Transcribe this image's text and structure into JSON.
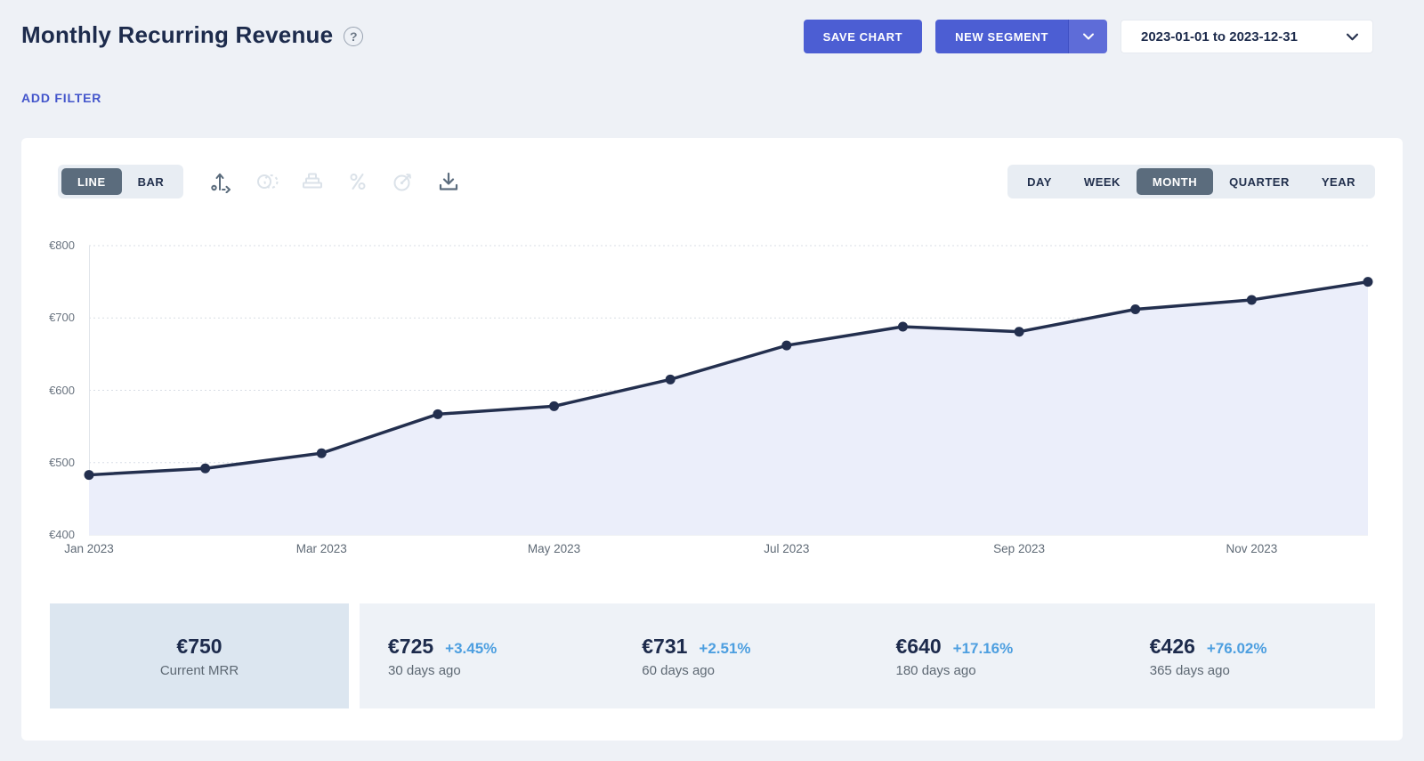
{
  "header": {
    "title": "Monthly Recurring Revenue",
    "help_icon": "question-mark-circle",
    "save_chart_label": "SAVE CHART",
    "new_segment_label": "NEW SEGMENT",
    "date_range": "2023-01-01 to 2023-12-31",
    "add_filter_label": "ADD FILTER"
  },
  "toolbar": {
    "chart_types": [
      {
        "label": "LINE",
        "selected": true
      },
      {
        "label": "BAR",
        "selected": false
      }
    ],
    "icons": [
      {
        "name": "axis-scale-icon",
        "enabled": true
      },
      {
        "name": "compare-circles-icon",
        "enabled": false
      },
      {
        "name": "stacked-chart-icon",
        "enabled": false
      },
      {
        "name": "percent-icon",
        "enabled": false
      },
      {
        "name": "goal-icon",
        "enabled": false
      },
      {
        "name": "download-icon",
        "enabled": true
      }
    ],
    "periods": [
      {
        "label": "DAY",
        "selected": false
      },
      {
        "label": "WEEK",
        "selected": false
      },
      {
        "label": "MONTH",
        "selected": true
      },
      {
        "label": "QUARTER",
        "selected": false
      },
      {
        "label": "YEAR",
        "selected": false
      }
    ]
  },
  "chart_data": {
    "type": "line",
    "title": "Monthly Recurring Revenue",
    "currency": "€",
    "x": [
      "Jan 2023",
      "Feb 2023",
      "Mar 2023",
      "Apr 2023",
      "May 2023",
      "Jun 2023",
      "Jul 2023",
      "Aug 2023",
      "Sep 2023",
      "Oct 2023",
      "Nov 2023",
      "Dec 2023"
    ],
    "values": [
      483,
      492,
      513,
      567,
      578,
      615,
      662,
      688,
      681,
      712,
      725,
      750
    ],
    "ylim": [
      400,
      800
    ],
    "ytick_values": [
      400,
      500,
      600,
      700,
      800
    ],
    "yticks": [
      "€400",
      "€500",
      "€600",
      "€700",
      "€800"
    ],
    "xtick_indices": [
      0,
      2,
      4,
      6,
      8,
      10
    ],
    "xtick_labels_shown": [
      "Jan 2023",
      "Mar 2023",
      "May 2023",
      "Jul 2023",
      "Sep 2023",
      "Nov 2023"
    ],
    "grid": "horizontal-dotted",
    "legend": "none",
    "area_fill": true
  },
  "stats": {
    "current": {
      "value": "€750",
      "label": "Current MRR"
    },
    "history": [
      {
        "value": "€725",
        "change": "+3.45%",
        "label": "30 days ago"
      },
      {
        "value": "€731",
        "change": "+2.51%",
        "label": "60 days ago"
      },
      {
        "value": "€640",
        "change": "+17.16%",
        "label": "180 days ago"
      },
      {
        "value": "€426",
        "change": "+76.02%",
        "label": "365 days ago"
      }
    ]
  },
  "colors": {
    "page_background": "#eef1f6",
    "card_background": "#ffffff",
    "brand_button": "#4c5ed3",
    "link_blue": "#4355cb",
    "selected_toggle": "#5b6c7d",
    "line_series": "#232f4e",
    "area_fill": "#ebeefa",
    "percent_change": "#4d9fe0",
    "current_tile_bg": "#dce6f0",
    "stat_strip_bg": "#eef2f7"
  }
}
